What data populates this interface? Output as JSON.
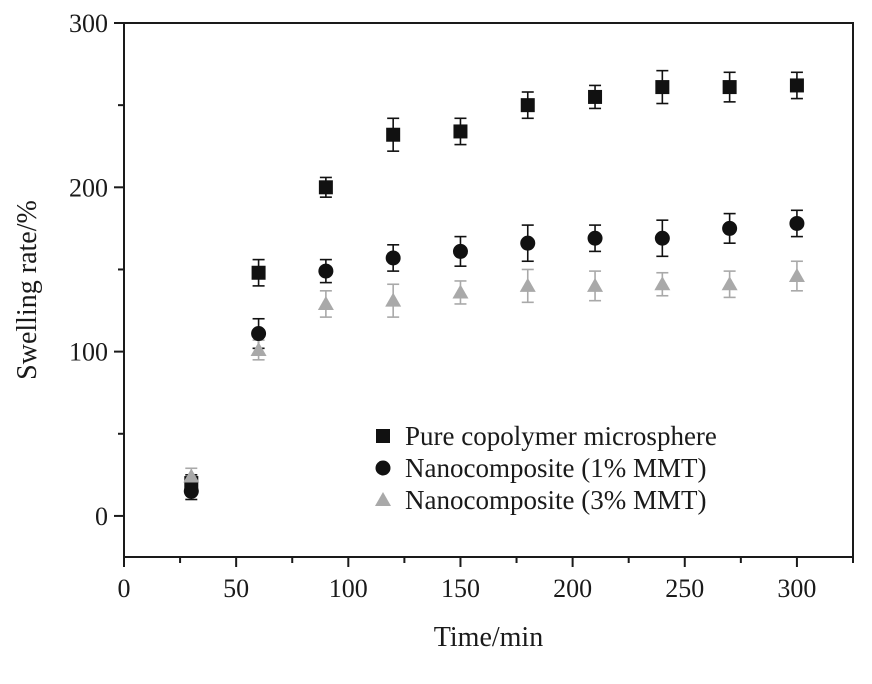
{
  "chart_data": {
    "type": "scatter",
    "xlabel": "Time/min",
    "ylabel": "Swelling rate/%",
    "xlim": [
      0,
      325
    ],
    "ylim": [
      -25,
      300
    ],
    "x_ticks": [
      0,
      50,
      100,
      150,
      200,
      250,
      300
    ],
    "y_ticks": [
      0,
      100,
      200,
      300
    ],
    "x_tick_labels": [
      "0",
      "50",
      "100",
      "150",
      "200",
      "250",
      "300"
    ],
    "y_tick_labels": [
      "0",
      "100",
      "200",
      "300"
    ],
    "grid": false,
    "legend_position": "lower-right",
    "series": [
      {
        "name": "Pure copolymer microsphere",
        "marker": "square",
        "color": "#111111",
        "x": [
          30,
          60,
          90,
          120,
          150,
          180,
          210,
          240,
          270,
          300
        ],
        "y": [
          20,
          148,
          200,
          232,
          234,
          250,
          255,
          261,
          261,
          262
        ],
        "err": [
          5,
          8,
          6,
          10,
          8,
          8,
          7,
          10,
          9,
          8
        ]
      },
      {
        "name": "Nanocomposite (1% MMT)",
        "marker": "circle",
        "color": "#111111",
        "x": [
          30,
          60,
          90,
          120,
          150,
          180,
          210,
          240,
          270,
          300
        ],
        "y": [
          15,
          111,
          149,
          157,
          161,
          166,
          169,
          169,
          175,
          178
        ],
        "err": [
          5,
          9,
          7,
          8,
          9,
          11,
          8,
          11,
          9,
          8
        ]
      },
      {
        "name": "Nanocomposite (3% MMT)",
        "marker": "triangle",
        "color": "#a9a9a9",
        "x": [
          30,
          60,
          90,
          120,
          150,
          180,
          210,
          240,
          270,
          300
        ],
        "y": [
          24,
          101,
          129,
          131,
          136,
          140,
          140,
          141,
          141,
          146
        ],
        "err": [
          5,
          6,
          8,
          10,
          7,
          10,
          9,
          7,
          8,
          9
        ]
      }
    ]
  }
}
